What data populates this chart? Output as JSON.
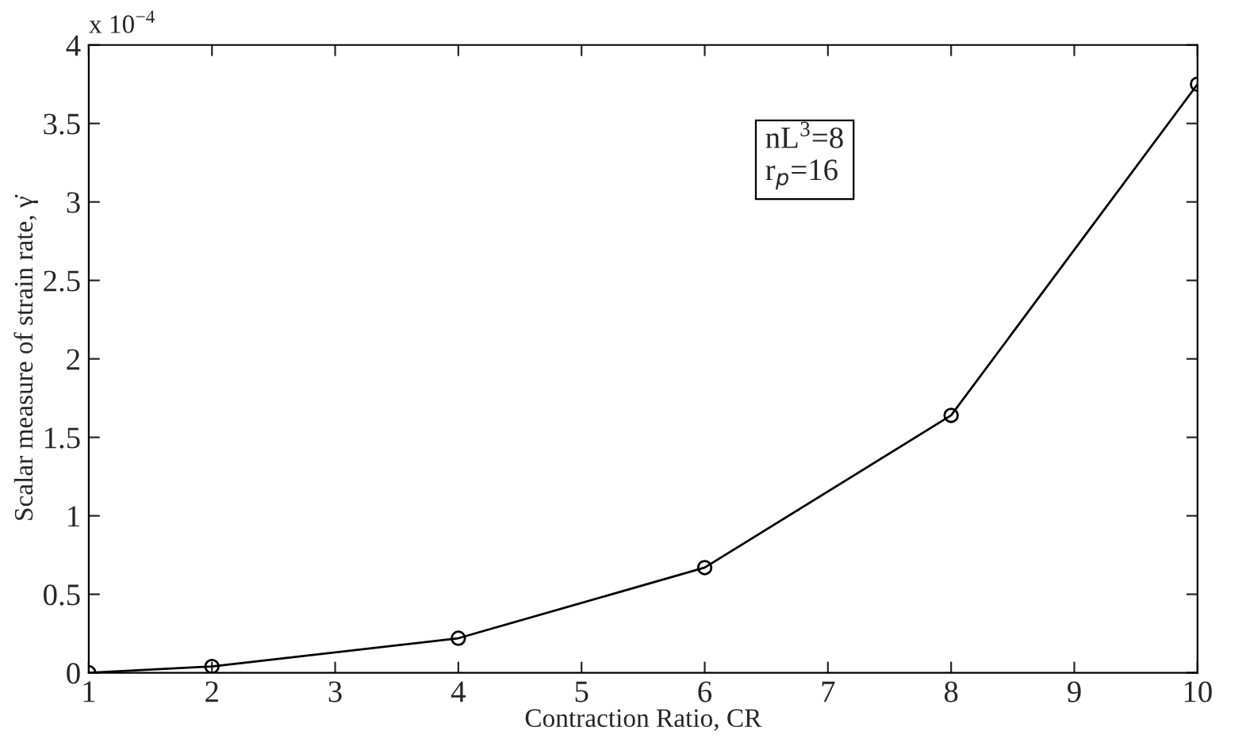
{
  "chart_data": {
    "type": "line",
    "xlabel": "Contraction Ratio, CR",
    "ylabel": "Scalar measure of strain rate, γ̇",
    "x": [
      1,
      2,
      4,
      6,
      8,
      10
    ],
    "series": [
      {
        "color": "#000000",
        "values": [
          0,
          0.04,
          0.22,
          0.67,
          1.64,
          3.75
        ]
      }
    ],
    "marker": "circle",
    "line_style": "solid",
    "xlim": [
      1,
      10
    ],
    "xticks": [
      1,
      2,
      3,
      4,
      5,
      6,
      7,
      8,
      9,
      10
    ],
    "ylim": [
      0,
      4
    ],
    "yticks": [
      0,
      0.5,
      1,
      1.5,
      2,
      2.5,
      3,
      3.5,
      4
    ],
    "grid": false,
    "legend": false,
    "annotations": [
      "x 10$^{−4}$",
      "nL$^{3}$=8\nr$_{p}$=16"
    ]
  }
}
